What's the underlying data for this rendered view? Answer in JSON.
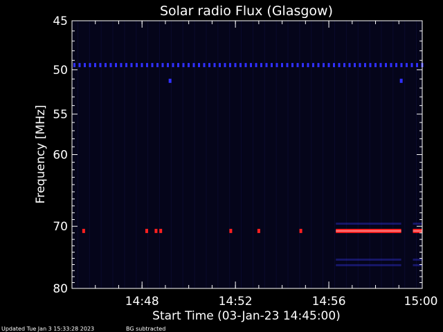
{
  "chart_data": {
    "type": "heatmap",
    "title": "Solar radio Flux (Glasgow)",
    "xlabel": "Start Time (03-Jan-23 14:45:00)",
    "ylabel": "Frequency [MHz]",
    "x_range_minutes": [
      0,
      15
    ],
    "x_ticks": [
      {
        "label": "14:48",
        "minute": 3
      },
      {
        "label": "14:52",
        "minute": 7
      },
      {
        "label": "14:56",
        "minute": 11
      },
      {
        "label": "15:00",
        "minute": 15
      }
    ],
    "y_scale": "log",
    "ylim": [
      45,
      80
    ],
    "y_ticks": [
      45,
      50,
      55,
      60,
      70,
      80
    ],
    "colors": {
      "background": "#000000",
      "plot_background": "#05051a",
      "low": "#1a1a66",
      "interference": "#3a3aff",
      "high": "#ff2a2a",
      "peak": "#ffdddd"
    },
    "features": [
      {
        "kind": "band",
        "freq_mhz": 49.5,
        "from_minute": 0,
        "to_minute": 15,
        "intensity": "medium",
        "color": "#3030ff"
      },
      {
        "kind": "band",
        "freq_mhz": 70.7,
        "from_minute": 11.3,
        "to_minute": 14.1,
        "intensity": "high",
        "color": "#ff2020"
      },
      {
        "kind": "band",
        "freq_mhz": 70.7,
        "from_minute": 14.6,
        "to_minute": 15,
        "intensity": "high",
        "color": "#ff2020"
      },
      {
        "kind": "dot",
        "freq_mhz": 70.7,
        "minute": 0.5,
        "color": "#ff2020"
      },
      {
        "kind": "dot",
        "freq_mhz": 70.7,
        "minute": 3.2,
        "color": "#ff2020"
      },
      {
        "kind": "dot",
        "freq_mhz": 70.7,
        "minute": 3.6,
        "color": "#ff2020"
      },
      {
        "kind": "dot",
        "freq_mhz": 70.7,
        "minute": 3.8,
        "color": "#ff2020"
      },
      {
        "kind": "dot",
        "freq_mhz": 70.7,
        "minute": 6.8,
        "color": "#ff2020"
      },
      {
        "kind": "dot",
        "freq_mhz": 70.7,
        "minute": 8.0,
        "color": "#ff2020"
      },
      {
        "kind": "dot",
        "freq_mhz": 70.7,
        "minute": 9.8,
        "color": "#ff2020"
      },
      {
        "kind": "dot",
        "freq_mhz": 51.2,
        "minute": 4.2,
        "color": "#3030ff"
      },
      {
        "kind": "dot",
        "freq_mhz": 51.2,
        "minute": 14.1,
        "color": "#3030ff"
      }
    ]
  },
  "footer": {
    "updated_text": "Updated Tue Jan  3 15:33:28 2023",
    "bg_text": "BG subtracted"
  }
}
